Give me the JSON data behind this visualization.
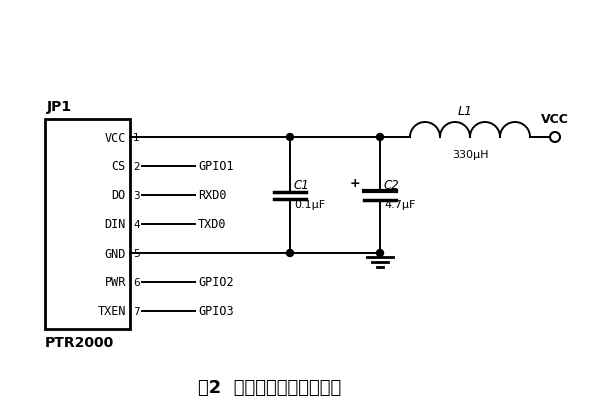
{
  "title": "图2  无线通信模块接口电路",
  "bg_color": "#ffffff",
  "connector_label": "JP1",
  "ic_label": "PTR2000",
  "pin_labels": [
    "VCC",
    "CS",
    "DO",
    "DIN",
    "GND",
    "PWR",
    "TXEN"
  ],
  "pin_numbers": [
    "1",
    "2",
    "3",
    "4",
    "5",
    "6",
    "7"
  ],
  "gpio_map": {
    "1": "GPIO1",
    "2": "RXD0",
    "3": "TXD0",
    "5": "GPIO2",
    "6": "GPIO3"
  },
  "vcc_label": "VCC",
  "l1_label": "L1",
  "l1_value": "330μH",
  "c1_label": "C1",
  "c1_value": "0.1μF",
  "c2_label": "C2",
  "c2_value": "4.7μF",
  "figsize": [
    6.11,
    4.1
  ],
  "dpi": 100
}
